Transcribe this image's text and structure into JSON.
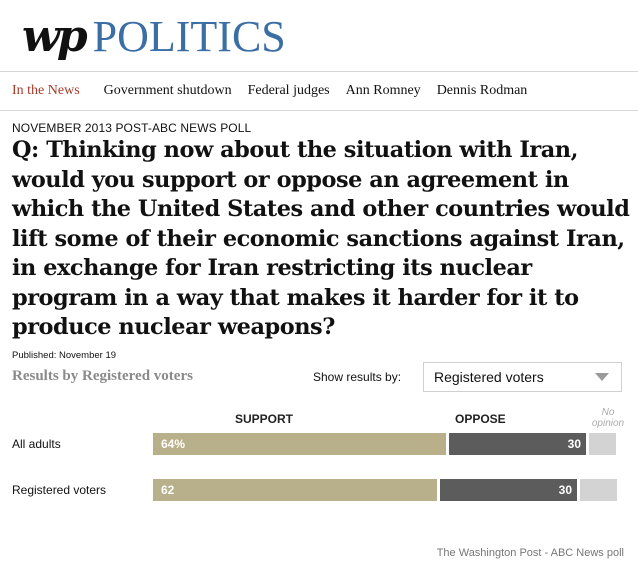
{
  "header": {
    "logo_text": "wp",
    "section_title": "POLITICS",
    "brand_color": "#3a6ea5"
  },
  "nav": {
    "label": "In the News",
    "label_color": "#a33a2a",
    "links": [
      "Government shutdown",
      "Federal judges",
      "Ann Romney",
      "Dennis Rodman"
    ]
  },
  "poll": {
    "kicker": "NOVEMBER 2013 POST-ABC NEWS POLL",
    "question": "Q: Thinking now about the situation with Iran, would you support or oppose an agreement in which the United States and other countries would lift some of their economic sanctions against Iran, in exchange for Iran restricting its nuclear program in a way that makes it harder for it to produce nuclear weapons?",
    "published": "Published: November 19",
    "results_title": "Results by Registered voters",
    "show_results_label": "Show results by:",
    "show_results_value": "Registered voters"
  },
  "chart_data": {
    "type": "bar",
    "stacked": true,
    "column_headers": [
      "SUPPORT",
      "OPPOSE",
      "No opinion"
    ],
    "categories": [
      "All adults",
      "Registered voters"
    ],
    "series": [
      {
        "name": "SUPPORT",
        "values": [
          64,
          62
        ],
        "labels": [
          "64%",
          "62"
        ],
        "color": "#b8b08a"
      },
      {
        "name": "OPPOSE",
        "values": [
          30,
          30
        ],
        "labels": [
          "30",
          "30"
        ],
        "color": "#5c5c5c"
      },
      {
        "name": "No opinion",
        "values": [
          6,
          8
        ],
        "color": "#d3d3d3"
      }
    ]
  },
  "footer": {
    "credit": "The Washington Post - ABC News poll"
  }
}
